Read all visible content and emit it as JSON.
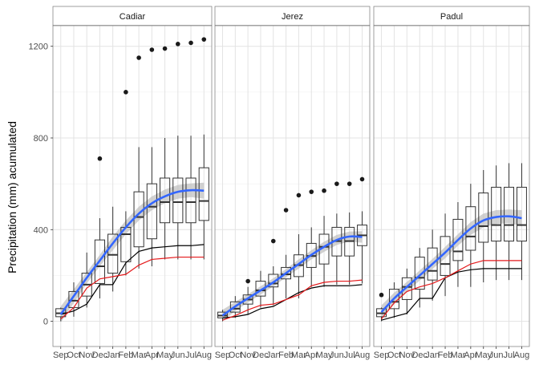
{
  "chart_data": {
    "type": "boxplot-facets",
    "ylabel": "Precipitation (mm) acumulated",
    "xlabel": "",
    "categories": [
      "Sep",
      "Oct",
      "Nov",
      "Dec",
      "Jan",
      "Feb",
      "Mar",
      "Apr",
      "May",
      "Jun",
      "Jul",
      "Aug"
    ],
    "ylim": [
      -110,
      1290
    ],
    "yticks": [
      0,
      400,
      800,
      1200
    ],
    "grid": true,
    "colors": {
      "smooth": "#3366ff",
      "band": "#bdbdbd",
      "red": "#e41a1c",
      "black": "#000000",
      "outlier": "#1a1a1a"
    },
    "panels": [
      {
        "name": "Cadiar",
        "boxes": [
          {
            "lw": 0,
            "q1": 20,
            "med": 35,
            "q3": 55,
            "uw": 60
          },
          {
            "lw": 20,
            "q1": 60,
            "med": 90,
            "q3": 130,
            "uw": 170
          },
          {
            "lw": 60,
            "q1": 110,
            "med": 160,
            "q3": 210,
            "uw": 300
          },
          {
            "lw": 100,
            "q1": 165,
            "med": 240,
            "q3": 355,
            "uw": 450
          },
          {
            "lw": 130,
            "q1": 210,
            "med": 290,
            "q3": 380,
            "uw": 500
          },
          {
            "lw": 200,
            "q1": 260,
            "med": 380,
            "q3": 410,
            "uw": 480
          },
          {
            "lw": 230,
            "q1": 325,
            "med": 455,
            "q3": 565,
            "uw": 760
          },
          {
            "lw": 240,
            "q1": 360,
            "med": 500,
            "q3": 600,
            "uw": 760
          },
          {
            "lw": 270,
            "q1": 430,
            "med": 520,
            "q3": 625,
            "uw": 800
          },
          {
            "lw": 270,
            "q1": 430,
            "med": 520,
            "q3": 625,
            "uw": 810
          },
          {
            "lw": 270,
            "q1": 430,
            "med": 520,
            "q3": 625,
            "uw": 810
          },
          {
            "lw": 270,
            "q1": 440,
            "med": 525,
            "q3": 670,
            "uw": 815
          }
        ],
        "outliers": [
          [
            3,
            710
          ],
          [
            5,
            1000
          ],
          [
            6,
            1150
          ],
          [
            7,
            1185
          ],
          [
            8,
            1190
          ],
          [
            9,
            1210
          ],
          [
            10,
            1215
          ],
          [
            11,
            1230
          ]
        ],
        "red_line": [
          10,
          60,
          145,
          185,
          195,
          205,
          245,
          270,
          275,
          280,
          280,
          280
        ],
        "black_line": [
          30,
          45,
          75,
          160,
          160,
          255,
          305,
          320,
          325,
          330,
          330,
          335
        ],
        "smooth": [
          30,
          110,
          190,
          265,
          340,
          410,
          470,
          515,
          545,
          565,
          572,
          570
        ],
        "band": [
          35,
          30,
          25,
          25,
          30,
          30,
          30,
          30,
          30,
          30,
          30,
          35
        ]
      },
      {
        "name": "Jerez",
        "boxes": [
          {
            "lw": 0,
            "q1": 15,
            "med": 25,
            "q3": 40,
            "uw": 50
          },
          {
            "lw": 15,
            "q1": 40,
            "med": 55,
            "q3": 85,
            "uw": 110
          },
          {
            "lw": 30,
            "q1": 75,
            "med": 95,
            "q3": 115,
            "uw": 150
          },
          {
            "lw": 60,
            "q1": 110,
            "med": 135,
            "q3": 175,
            "uw": 220
          },
          {
            "lw": 70,
            "q1": 150,
            "med": 165,
            "q3": 205,
            "uw": 240
          },
          {
            "lw": 100,
            "q1": 185,
            "med": 205,
            "q3": 235,
            "uw": 290
          },
          {
            "lw": 100,
            "q1": 195,
            "med": 245,
            "q3": 290,
            "uw": 380
          },
          {
            "lw": 150,
            "q1": 235,
            "med": 285,
            "q3": 340,
            "uw": 410
          },
          {
            "lw": 150,
            "q1": 250,
            "med": 325,
            "q3": 380,
            "uw": 460
          },
          {
            "lw": 160,
            "q1": 285,
            "med": 350,
            "q3": 410,
            "uw": 470
          },
          {
            "lw": 160,
            "q1": 285,
            "med": 350,
            "q3": 410,
            "uw": 475
          },
          {
            "lw": 165,
            "q1": 330,
            "med": 375,
            "q3": 420,
            "uw": 480
          }
        ],
        "outliers": [
          [
            2,
            175
          ],
          [
            4,
            350
          ],
          [
            5,
            485
          ],
          [
            6,
            550
          ],
          [
            7,
            565
          ],
          [
            8,
            570
          ],
          [
            9,
            600
          ],
          [
            10,
            600
          ],
          [
            11,
            620
          ]
        ],
        "red_line": [
          5,
          25,
          50,
          70,
          75,
          95,
          115,
          155,
          170,
          175,
          175,
          180
        ],
        "black_line": [
          15,
          20,
          30,
          55,
          65,
          95,
          125,
          145,
          155,
          155,
          155,
          160
        ],
        "smooth": [
          25,
          65,
          100,
          135,
          170,
          210,
          250,
          290,
          325,
          355,
          370,
          368
        ],
        "band": [
          25,
          20,
          18,
          18,
          18,
          18,
          20,
          20,
          22,
          22,
          22,
          25
        ]
      },
      {
        "name": "Padul",
        "boxes": [
          {
            "lw": 0,
            "q1": 20,
            "med": 35,
            "q3": 55,
            "uw": 60
          },
          {
            "lw": 15,
            "q1": 55,
            "med": 85,
            "q3": 140,
            "uw": 170
          },
          {
            "lw": 30,
            "q1": 95,
            "med": 150,
            "q3": 190,
            "uw": 230
          },
          {
            "lw": 60,
            "q1": 140,
            "med": 190,
            "q3": 280,
            "uw": 320
          },
          {
            "lw": 90,
            "q1": 180,
            "med": 220,
            "q3": 320,
            "uw": 400
          },
          {
            "lw": 110,
            "q1": 200,
            "med": 250,
            "q3": 370,
            "uw": 470
          },
          {
            "lw": 150,
            "q1": 265,
            "med": 305,
            "q3": 445,
            "uw": 520
          },
          {
            "lw": 150,
            "q1": 310,
            "med": 370,
            "q3": 500,
            "uw": 600
          },
          {
            "lw": 170,
            "q1": 345,
            "med": 415,
            "q3": 560,
            "uw": 660
          },
          {
            "lw": 180,
            "q1": 350,
            "med": 420,
            "q3": 585,
            "uw": 680
          },
          {
            "lw": 180,
            "q1": 350,
            "med": 420,
            "q3": 585,
            "uw": 690
          },
          {
            "lw": 180,
            "q1": 350,
            "med": 420,
            "q3": 585,
            "uw": 690
          }
        ],
        "outliers": [
          [
            0,
            115
          ]
        ],
        "red_line": [
          10,
          80,
          130,
          150,
          165,
          190,
          220,
          250,
          265,
          265,
          265,
          265
        ],
        "black_line": [
          5,
          20,
          35,
          100,
          100,
          190,
          215,
          225,
          230,
          230,
          230,
          230
        ],
        "smooth": [
          40,
          100,
          150,
          200,
          250,
          300,
          355,
          405,
          440,
          455,
          458,
          450
        ],
        "band": [
          30,
          25,
          22,
          22,
          22,
          25,
          25,
          28,
          30,
          30,
          30,
          35
        ]
      }
    ]
  }
}
